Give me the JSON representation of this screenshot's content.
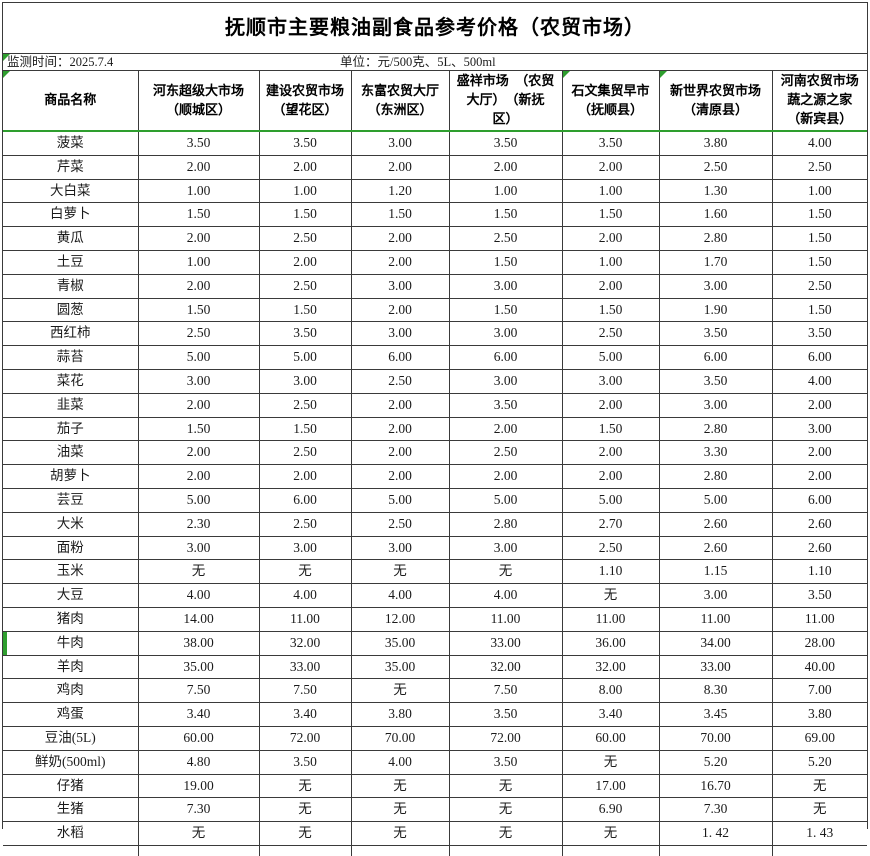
{
  "title": "抚顺市主要粮油副食品参考价格（农贸市场）",
  "meta": {
    "monitor_time": "监测时间：2025.7.4",
    "unit": "单位：元/500克、5L、500ml"
  },
  "colors": {
    "grid": "#3a3a3a",
    "accent_green": "#2e9e2e",
    "text": "#1a1a1a"
  },
  "table": {
    "columns": [
      "商品名称",
      "河东超级大市场\n（顺城区）",
      "建设农贸市场\n（望花区）",
      "东富农贸大厅\n（东洲区）",
      "盛祥市场　（农贸\n大厅）　（新抚\n区）",
      "石文集贸早市\n（抚顺县）",
      "新世界农贸市场\n（清原县）",
      "河南农贸市场\n蔬之源之家\n（新宾县）"
    ],
    "empty_value": "无",
    "green_left_marker_row": 21,
    "rows": [
      {
        "name": "菠菜",
        "values": [
          "3.50",
          "3.50",
          "3.00",
          "3.50",
          "3.50",
          "3.80",
          "4.00"
        ]
      },
      {
        "name": "芹菜",
        "values": [
          "2.00",
          "2.00",
          "2.00",
          "2.00",
          "2.00",
          "2.50",
          "2.50"
        ]
      },
      {
        "name": "大白菜",
        "values": [
          "1.00",
          "1.00",
          "1.20",
          "1.00",
          "1.00",
          "1.30",
          "1.00"
        ]
      },
      {
        "name": "白萝卜",
        "values": [
          "1.50",
          "1.50",
          "1.50",
          "1.50",
          "1.50",
          "1.60",
          "1.50"
        ]
      },
      {
        "name": "黄瓜",
        "values": [
          "2.00",
          "2.50",
          "2.00",
          "2.50",
          "2.00",
          "2.80",
          "1.50"
        ]
      },
      {
        "name": "土豆",
        "values": [
          "1.00",
          "2.00",
          "2.00",
          "1.50",
          "1.00",
          "1.70",
          "1.50"
        ]
      },
      {
        "name": "青椒",
        "values": [
          "2.00",
          "2.50",
          "3.00",
          "3.00",
          "2.00",
          "3.00",
          "2.50"
        ]
      },
      {
        "name": "圆葱",
        "values": [
          "1.50",
          "1.50",
          "2.00",
          "1.50",
          "1.50",
          "1.90",
          "1.50"
        ]
      },
      {
        "name": "西红柿",
        "values": [
          "2.50",
          "3.50",
          "3.00",
          "3.00",
          "2.50",
          "3.50",
          "3.50"
        ]
      },
      {
        "name": "蒜苔",
        "values": [
          "5.00",
          "5.00",
          "6.00",
          "6.00",
          "5.00",
          "6.00",
          "6.00"
        ]
      },
      {
        "name": "菜花",
        "values": [
          "3.00",
          "3.00",
          "2.50",
          "3.00",
          "3.00",
          "3.50",
          "4.00"
        ]
      },
      {
        "name": "韭菜",
        "values": [
          "2.00",
          "2.50",
          "2.00",
          "3.50",
          "2.00",
          "3.00",
          "2.00"
        ]
      },
      {
        "name": "茄子",
        "values": [
          "1.50",
          "1.50",
          "2.00",
          "2.00",
          "1.50",
          "2.80",
          "3.00"
        ]
      },
      {
        "name": "油菜",
        "values": [
          "2.00",
          "2.50",
          "2.00",
          "2.50",
          "2.00",
          "3.30",
          "2.00"
        ]
      },
      {
        "name": "胡萝卜",
        "values": [
          "2.00",
          "2.00",
          "2.00",
          "2.00",
          "2.00",
          "2.80",
          "2.00"
        ]
      },
      {
        "name": "芸豆",
        "values": [
          "5.00",
          "6.00",
          "5.00",
          "5.00",
          "5.00",
          "5.00",
          "6.00"
        ]
      },
      {
        "name": "大米",
        "values": [
          "2.30",
          "2.50",
          "2.50",
          "2.80",
          "2.70",
          "2.60",
          "2.60"
        ]
      },
      {
        "name": "面粉",
        "values": [
          "3.00",
          "3.00",
          "3.00",
          "3.00",
          "2.50",
          "2.60",
          "2.60"
        ]
      },
      {
        "name": "玉米",
        "values": [
          "无",
          "无",
          "无",
          "无",
          "1.10",
          "1.15",
          "1.10"
        ]
      },
      {
        "name": "大豆",
        "values": [
          "4.00",
          "4.00",
          "4.00",
          "4.00",
          "无",
          "3.00",
          "3.50"
        ]
      },
      {
        "name": "猪肉",
        "values": [
          "14.00",
          "11.00",
          "12.00",
          "11.00",
          "11.00",
          "11.00",
          "11.00"
        ]
      },
      {
        "name": "牛肉",
        "values": [
          "38.00",
          "32.00",
          "35.00",
          "33.00",
          "36.00",
          "34.00",
          "28.00"
        ]
      },
      {
        "name": "羊肉",
        "values": [
          "35.00",
          "33.00",
          "35.00",
          "32.00",
          "32.00",
          "33.00",
          "40.00"
        ]
      },
      {
        "name": "鸡肉",
        "values": [
          "7.50",
          "7.50",
          "无",
          "7.50",
          "8.00",
          "8.30",
          "7.00"
        ]
      },
      {
        "name": "鸡蛋",
        "values": [
          "3.40",
          "3.40",
          "3.80",
          "3.50",
          "3.40",
          "3.45",
          "3.80"
        ]
      },
      {
        "name": "豆油(5L)",
        "values": [
          "60.00",
          "72.00",
          "70.00",
          "72.00",
          "60.00",
          "70.00",
          "69.00"
        ]
      },
      {
        "name": "鲜奶(500ml)",
        "values": [
          "4.80",
          "3.50",
          "4.00",
          "3.50",
          "无",
          "5.20",
          "5.20"
        ]
      },
      {
        "name": "仔猪",
        "values": [
          "19.00",
          "无",
          "无",
          "无",
          "17.00",
          "16.70",
          "无"
        ]
      },
      {
        "name": "生猪",
        "values": [
          "7.30",
          "无",
          "无",
          "无",
          "6.90",
          "7.30",
          "无"
        ]
      },
      {
        "name": "水稻",
        "values": [
          "无",
          "无",
          "无",
          "无",
          "无",
          "1. 42",
          "1. 43"
        ]
      }
    ]
  }
}
